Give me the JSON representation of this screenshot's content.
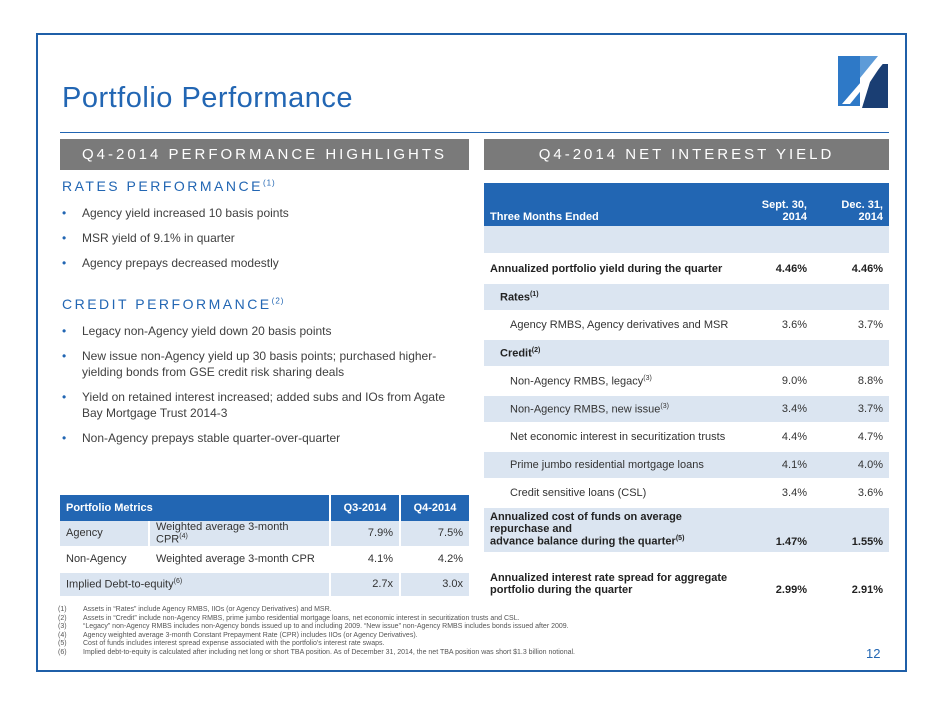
{
  "page": {
    "title": "Portfolio Performance",
    "page_number": "12",
    "colors": {
      "accent": "#2266b3",
      "banner": "#7a7a7a",
      "row_shade": "#dbe5f1",
      "logo_dark": "#1a3e73"
    }
  },
  "left": {
    "banner": "Q4-2014 PERFORMANCE HIGHLIGHTS",
    "rates": {
      "heading": "RATES PERFORMANCE",
      "heading_sup": "(1)",
      "bullets": [
        "Agency yield increased 10 basis points",
        "MSR yield of 9.1% in quarter",
        "Agency prepays decreased modestly"
      ]
    },
    "credit": {
      "heading": "CREDIT PERFORMANCE",
      "heading_sup": "(2)",
      "bullets": [
        "Legacy non-Agency yield down 20 basis points",
        "New issue non-Agency yield up 30 basis points; purchased higher-yielding bonds from GSE credit risk sharing deals",
        "Yield on retained interest increased; added subs and IOs from Agate Bay Mortgage Trust 2014-3",
        "Non-Agency prepays stable quarter-over-quarter"
      ]
    },
    "metrics_table": {
      "headers": [
        "Portfolio Metrics",
        "Q3-2014",
        "Q4-2014"
      ],
      "rows": [
        {
          "cat": "Agency",
          "metric": "Weighted average 3-month CPR",
          "sup": "(4)",
          "q3": "7.9%",
          "q4": "7.5%"
        },
        {
          "cat": "Non-Agency",
          "metric": "Weighted average 3-month CPR",
          "sup": "",
          "q3": "4.1%",
          "q4": "4.2%"
        },
        {
          "cat": "Implied Debt-to-equity",
          "sup": "(6)",
          "q3": "2.7x",
          "q4": "3.0x"
        }
      ]
    }
  },
  "right": {
    "banner": "Q4-2014 NET INTEREST YIELD",
    "table": {
      "header_label": "Three Months Ended",
      "col1": [
        "Sept. 30,",
        "2014"
      ],
      "col2": [
        "Dec. 31,",
        "2014"
      ],
      "rows": [
        {
          "label": "Annualized portfolio yield during the quarter",
          "sup": "",
          "c1": "4.46%",
          "c2": "4.46%"
        },
        {
          "label": "Rates",
          "sup": "(1)",
          "c1": "",
          "c2": ""
        },
        {
          "label": "Agency RMBS, Agency derivatives and MSR",
          "sup": "",
          "c1": "3.6%",
          "c2": "3.7%"
        },
        {
          "label": "Credit",
          "sup": "(2)",
          "c1": "",
          "c2": ""
        },
        {
          "label": "Non-Agency RMBS, legacy",
          "sup": "(3)",
          "c1": "9.0%",
          "c2": "8.8%"
        },
        {
          "label": "Non-Agency RMBS, new issue",
          "sup": "(3)",
          "c1": "3.4%",
          "c2": "3.7%"
        },
        {
          "label": "Net economic interest in securitization trusts",
          "sup": "",
          "c1": "4.4%",
          "c2": "4.7%"
        },
        {
          "label": "Prime jumbo residential mortgage loans",
          "sup": "",
          "c1": "4.1%",
          "c2": "4.0%"
        },
        {
          "label": "Credit sensitive loans (CSL)",
          "sup": "",
          "c1": "3.4%",
          "c2": "3.6%"
        },
        {
          "label1": "Annualized cost of funds on average repurchase and",
          "label2": "advance balance during the quarter",
          "sup": "(5)",
          "c1": "1.47%",
          "c2": "1.55%"
        },
        {
          "label1": "Annualized interest rate spread for aggregate",
          "label2": "portfolio during the quarter",
          "sup": "",
          "c1": "2.99%",
          "c2": "2.91%"
        }
      ]
    }
  },
  "footnotes": [
    {
      "n": "(1)",
      "text": "Assets in “Rates” include Agency RMBS, IIOs (or Agency Derivatives) and MSR."
    },
    {
      "n": "(2)",
      "text": "Assets in “Credit” include non-Agency RMBS, prime jumbo residential mortgage loans, net economic interest in securitization trusts and CSL."
    },
    {
      "n": "(3)",
      "text": "“Legacy” non-Agency RMBS includes non-Agency bonds issued up to and including 2009. “New issue” non-Agency RMBS includes bonds issued after 2009."
    },
    {
      "n": "(4)",
      "text": "Agency weighted average 3-month Constant Prepayment Rate (CPR) includes IIOs (or Agency Derivatives)."
    },
    {
      "n": "(5)",
      "text": "Cost of funds includes interest spread expense associated with the portfolio’s interest rate swaps."
    },
    {
      "n": "(6)",
      "text": "Implied debt-to-equity is calculated after including net long or short TBA position. As of December 31, 2014, the net TBA position was short $1.3 billion notional."
    }
  ]
}
